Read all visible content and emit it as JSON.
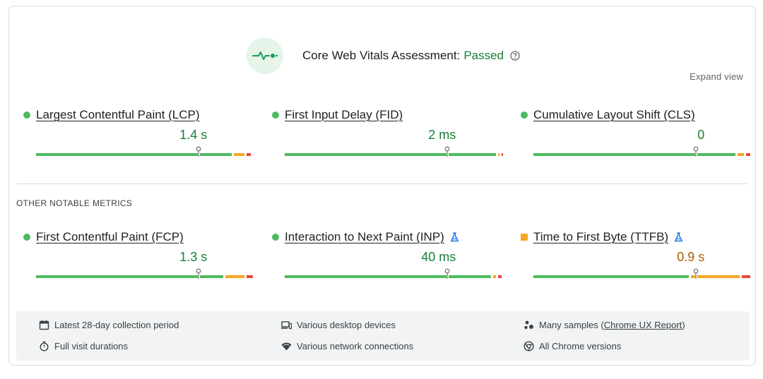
{
  "assessment": {
    "title": "Core Web Vitals Assessment:",
    "status": "Passed",
    "status_color": "#188038"
  },
  "expand_view": "Expand view",
  "core_metrics": [
    {
      "name": "Largest Contentful Paint (LCP)",
      "value": "1.4 s",
      "status": "good",
      "experimental": false,
      "distribution": {
        "good": 0.92,
        "needs_improvement": 0.05,
        "poor": 0.02
      },
      "marker": 0.75
    },
    {
      "name": "First Input Delay (FID)",
      "value": "2 ms",
      "status": "good",
      "experimental": false,
      "distribution": {
        "good": 0.995,
        "needs_improvement": 0.003,
        "poor": 0.002
      },
      "marker": 0.75
    },
    {
      "name": "Cumulative Layout Shift (CLS)",
      "value": "0",
      "status": "good",
      "experimental": false,
      "distribution": {
        "good": 0.95,
        "needs_improvement": 0.03,
        "poor": 0.02
      },
      "marker": 0.75
    }
  ],
  "other_section_label": "OTHER NOTABLE METRICS",
  "other_metrics": [
    {
      "name": "First Contentful Paint (FCP)",
      "value": "1.3 s",
      "status": "good",
      "experimental": false,
      "distribution": {
        "good": 0.88,
        "needs_improvement": 0.09,
        "poor": 0.03
      },
      "marker": 0.75
    },
    {
      "name": "Interaction to Next Paint (INP)",
      "value": "40 ms",
      "status": "good",
      "experimental": true,
      "distribution": {
        "good": 0.97,
        "needs_improvement": 0.015,
        "poor": 0.015
      },
      "marker": 0.75
    },
    {
      "name": "Time to First Byte (TTFB)",
      "value": "0.9 s",
      "status": "needs-improvement",
      "experimental": true,
      "distribution": {
        "good": 0.73,
        "needs_improvement": 0.23,
        "poor": 0.04
      },
      "marker": 0.75
    }
  ],
  "colors": {
    "good": "#4cbb5f",
    "needs_improvement": "#f5a623",
    "poor": "#e8453c",
    "link_blue": "#1a73e8"
  },
  "footer": {
    "items": [
      {
        "icon": "calendar-icon",
        "text": "Latest 28-day collection period"
      },
      {
        "icon": "devices-icon",
        "text": "Various desktop devices"
      },
      {
        "icon": "samples-icon",
        "text_prefix": "Many samples (",
        "link": "Chrome UX Report",
        "text_suffix": ")"
      },
      {
        "icon": "stopwatch-icon",
        "text": "Full visit durations"
      },
      {
        "icon": "wifi-icon",
        "text": "Various network connections"
      },
      {
        "icon": "chrome-icon",
        "text": "All Chrome versions"
      }
    ]
  }
}
